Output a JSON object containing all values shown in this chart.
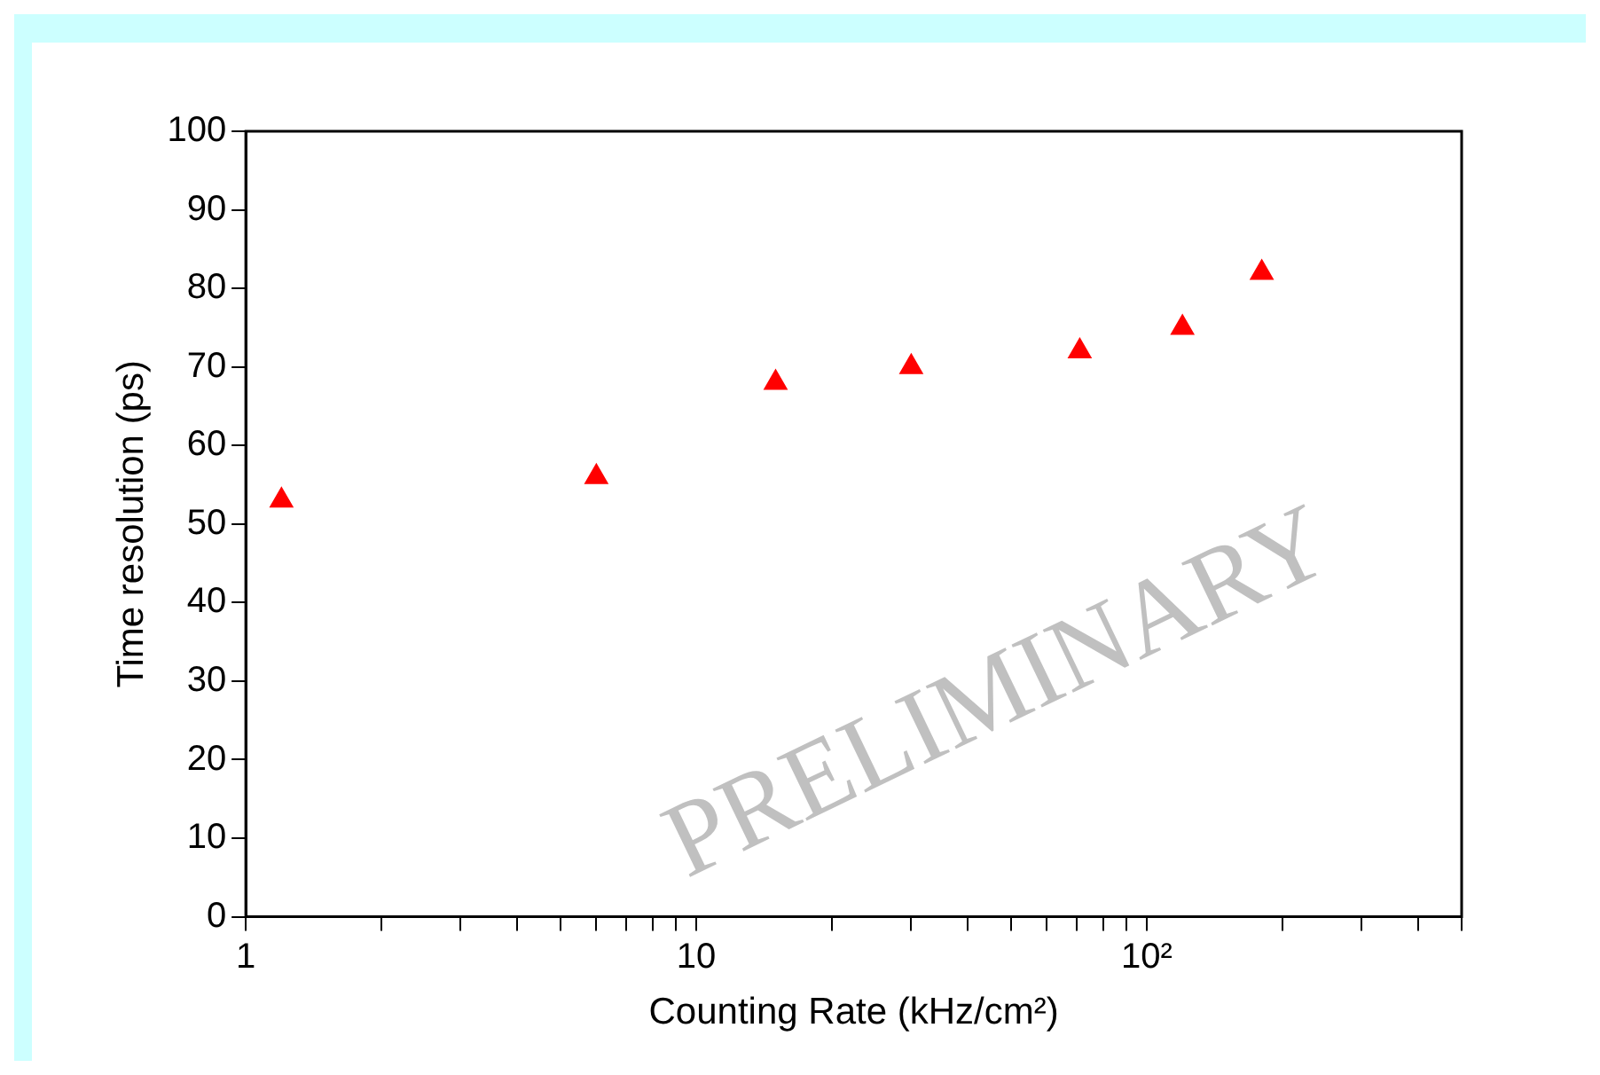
{
  "chart_data": {
    "type": "scatter",
    "xlabel": "Counting Rate (kHz/cm²)",
    "ylabel": "Time resolution (ps)",
    "x": [
      1.2,
      6,
      15,
      30,
      71,
      120,
      180
    ],
    "series": [
      {
        "color": "#ff0000",
        "values": [
          53,
          56,
          68,
          70,
          72,
          75,
          82
        ]
      }
    ],
    "log": "x",
    "xlim": [
      1,
      500
    ],
    "ylim": [
      0,
      100
    ],
    "xticks": [
      1,
      {
        "value": 2,
        "label": null
      },
      {
        "value": 3,
        "label": null
      },
      {
        "value": 4,
        "label": null
      },
      {
        "value": 5,
        "label": null
      },
      {
        "value": 6,
        "label": null
      },
      {
        "value": 7,
        "label": null
      },
      {
        "value": 8,
        "label": null
      },
      {
        "value": 9,
        "label": null
      },
      10,
      {
        "value": 20,
        "label": null
      },
      {
        "value": 30,
        "label": null
      },
      {
        "value": 40,
        "label": null
      },
      {
        "value": 50,
        "label": null
      },
      {
        "value": 60,
        "label": null
      },
      {
        "value": 70,
        "label": null
      },
      {
        "value": 80,
        "label": null
      },
      {
        "value": 90,
        "label": null
      },
      {
        "value": 100,
        "label": "10²"
      },
      {
        "value": 200,
        "label": null
      },
      {
        "value": 300,
        "label": null
      },
      {
        "value": 400,
        "label": null
      },
      {
        "value": 500,
        "label": null
      }
    ],
    "yticks": [
      0,
      10,
      20,
      30,
      40,
      50,
      60,
      70,
      80,
      90,
      100
    ],
    "marker": "triangle",
    "grid": false,
    "legend": false,
    "annotations": [
      "PRELIMINARY"
    ]
  }
}
